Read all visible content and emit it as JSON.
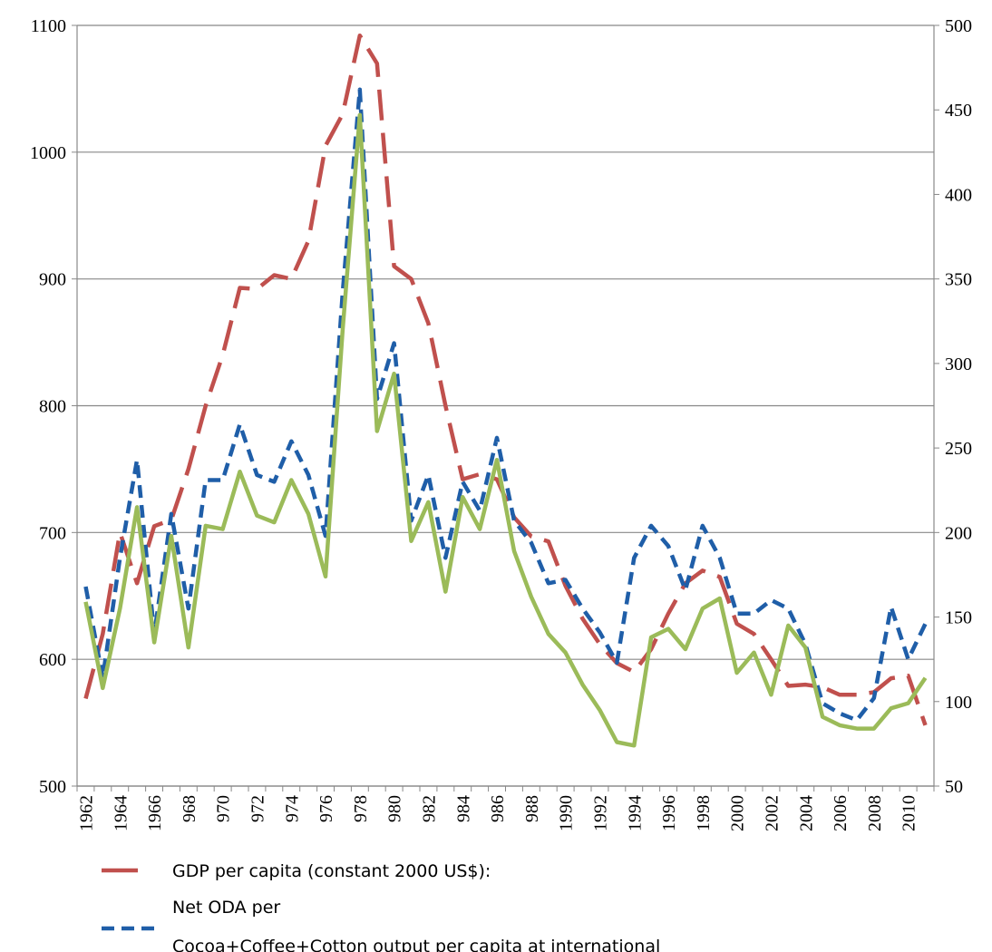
{
  "chart_data": {
    "type": "line",
    "categories": [
      "1962",
      null,
      "1964",
      null,
      "1966",
      null,
      "968",
      null,
      "970",
      null,
      "972",
      null,
      "974",
      null,
      "976",
      null,
      "978",
      null,
      "980",
      null,
      "982",
      null,
      "984",
      null,
      "986",
      null,
      "988",
      null,
      "1990",
      null,
      "1992",
      null,
      "1994",
      null,
      "1996",
      null,
      "1998",
      null,
      "2000",
      null,
      "2002",
      null,
      "2004",
      null,
      "2006",
      null,
      "2008",
      null,
      "2010",
      null
    ],
    "ylim": [
      500,
      1100
    ],
    "yticks": [
      500,
      600,
      700,
      800,
      900,
      1000,
      1100
    ],
    "y2lim": [
      50,
      500
    ],
    "y2ticks": [
      50,
      100,
      150,
      200,
      250,
      300,
      350,
      400,
      450,
      500
    ],
    "grid": true,
    "series": [
      {
        "name": "GDP per capita (constant 2000 US$):",
        "color": "#c0504d",
        "dash": "long",
        "values": [
          569,
          620,
          700,
          660,
          705,
          710,
          750,
          800,
          840,
          893,
          892,
          903,
          900,
          930,
          1005,
          1030,
          1092,
          1070,
          910,
          900,
          865,
          800,
          742,
          746,
          742,
          712,
          697,
          693,
          658,
          632,
          612,
          597,
          590,
          608,
          636,
          660,
          670,
          665,
          628,
          620,
          600,
          579,
          580,
          578,
          572,
          572,
          574,
          585,
          587,
          548
        ]
      },
      {
        "name": "Net ODA per",
        "color": "#1f5ea8",
        "dash": "short",
        "axis": "y2",
        "values": [
          168,
          114,
          185,
          243,
          140,
          211,
          155,
          231,
          231,
          264,
          234,
          230,
          254,
          234,
          198,
          342,
          462,
          279,
          312,
          207,
          234,
          185,
          230,
          213,
          256,
          207,
          194,
          170,
          172,
          155,
          141,
          123,
          185,
          204,
          192,
          166,
          204,
          185,
          152,
          152,
          160,
          155,
          134,
          99,
          93,
          89,
          102,
          156,
          125,
          146
        ]
      },
      {
        "name": "Cocoa+Coffee+Cotton output per capita at international",
        "color": "#9bbb59",
        "dash": "solid",
        "axis": "y2",
        "values": [
          159,
          108,
          155,
          215,
          135,
          198,
          132,
          204,
          202,
          236,
          210,
          206,
          231,
          211,
          174,
          320,
          447,
          260,
          294,
          195,
          218,
          165,
          221,
          202,
          243,
          189,
          162,
          140,
          129,
          110,
          95,
          76,
          74,
          138,
          143,
          131,
          155,
          161,
          117,
          129,
          104,
          145,
          132,
          91,
          86,
          84,
          84,
          96,
          99,
          114
        ]
      }
    ]
  }
}
